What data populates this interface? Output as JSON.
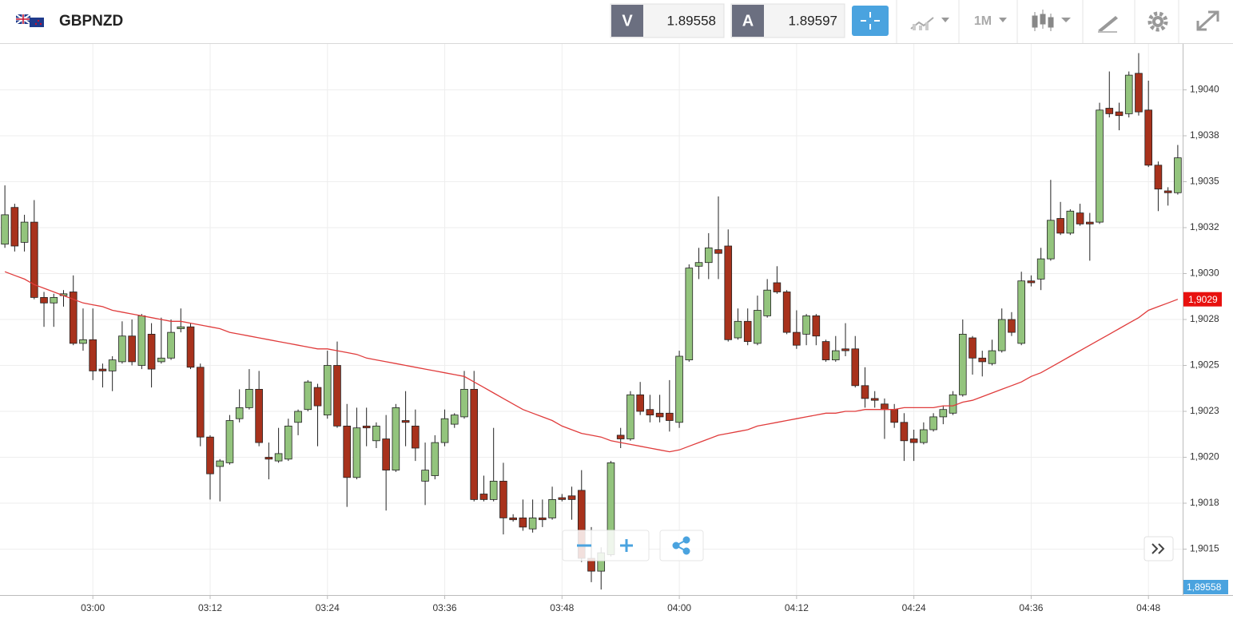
{
  "header": {
    "symbol": "GBPNZD",
    "bid_label": "V",
    "bid": "1.89558",
    "ask_label": "A",
    "ask": "1.89597",
    "timeframe": "1M"
  },
  "chart_data": {
    "type": "candlestick",
    "categories": [
      null,
      null,
      null,
      null,
      null,
      null,
      null,
      null,
      null,
      "03:00",
      null,
      null,
      null,
      null,
      null,
      null,
      null,
      null,
      null,
      null,
      null,
      "03:12",
      null,
      null,
      null,
      null,
      null,
      null,
      null,
      null,
      null,
      null,
      null,
      "03:24",
      null,
      null,
      null,
      null,
      null,
      null,
      null,
      null,
      null,
      null,
      null,
      "03:36",
      null,
      null,
      null,
      null,
      null,
      null,
      null,
      null,
      null,
      null,
      null,
      "03:48",
      null,
      null,
      null,
      null,
      null,
      null,
      null,
      null,
      null,
      null,
      null,
      "04:00",
      null,
      null,
      null,
      null,
      null,
      null,
      null,
      null,
      null,
      null,
      null,
      "04:12",
      null,
      null,
      null,
      null,
      null,
      null,
      null,
      null,
      null,
      null,
      null,
      "04:24",
      null,
      null,
      null,
      null,
      null,
      null,
      null,
      null,
      null,
      null,
      null,
      "04:36",
      null,
      null,
      null,
      null,
      null,
      null,
      null,
      null,
      null,
      null,
      null,
      "04:48",
      null,
      null,
      null
    ],
    "open": [
      1.90316,
      1.90336,
      1.90317,
      1.90328,
      1.90287,
      1.90284,
      1.90288,
      1.9029,
      1.90262,
      1.90264,
      1.90248,
      1.90247,
      1.90252,
      1.90266,
      1.9025,
      1.90267,
      1.90252,
      1.90254,
      1.9027,
      1.90271,
      1.90249,
      1.90211,
      1.90195,
      1.90197,
      1.90221,
      1.90227,
      1.90237,
      1.902,
      1.90198,
      1.90199,
      1.90219,
      1.90226,
      1.90238,
      1.90223,
      1.9025,
      1.90217,
      1.90189,
      1.90217,
      1.90209,
      1.9021,
      1.90193,
      1.9022,
      1.90217,
      1.90187,
      1.9019,
      1.90208,
      1.90218,
      1.90222,
      1.90237,
      1.9018,
      1.90177,
      1.90187,
      1.90167,
      1.90167,
      1.90161,
      1.90167,
      1.90167,
      1.90178,
      1.90179,
      1.90182,
      1.90145,
      1.90138,
      1.90147,
      1.90212,
      1.9021,
      1.90234,
      1.90226,
      1.90224,
      1.90224,
      1.90219,
      1.90253,
      1.90304,
      1.90306,
      1.90313,
      1.90315,
      1.90265,
      1.90274,
      1.90262,
      1.90277,
      1.90295,
      1.9029,
      1.90268,
      1.90267,
      1.90277,
      1.90263,
      1.90253,
      1.90259,
      1.90259,
      1.90239,
      1.90232,
      1.90229,
      1.90226,
      1.90219,
      1.9021,
      1.90208,
      1.90215,
      1.90222,
      1.90224,
      1.90234,
      1.90265,
      1.90254,
      1.90251,
      1.90258,
      1.90275,
      1.90262,
      1.90296,
      1.90297,
      1.90308,
      1.9033,
      1.90322,
      1.90333,
      1.90328,
      1.90328,
      1.9039,
      1.90388,
      1.90387,
      1.90409,
      1.90389,
      1.90359,
      1.90345,
      1.90344
    ],
    "high": [
      1.90348,
      1.90338,
      1.90332,
      1.9034,
      1.9029,
      1.90289,
      1.90291,
      1.90299,
      1.90281,
      1.90281,
      1.90251,
      1.90255,
      1.90274,
      1.90275,
      1.90278,
      1.90273,
      1.90276,
      1.90275,
      1.90281,
      1.90273,
      1.90251,
      1.90212,
      1.90199,
      1.90223,
      1.90237,
      1.90248,
      1.90247,
      1.90208,
      1.90216,
      1.90221,
      1.90226,
      1.90242,
      1.9024,
      1.90258,
      1.90263,
      1.90229,
      1.90227,
      1.90227,
      1.90219,
      1.90223,
      1.90229,
      1.90236,
      1.90226,
      1.90208,
      1.90212,
      1.90226,
      1.90224,
      1.90247,
      1.90247,
      1.9019,
      1.90216,
      1.90197,
      1.90169,
      1.90177,
      1.90177,
      1.90177,
      1.90184,
      1.9018,
      1.90184,
      1.90193,
      1.90162,
      1.90151,
      1.90198,
      1.90216,
      1.90236,
      1.90241,
      1.90234,
      1.90234,
      1.90242,
      1.90258,
      1.90305,
      1.90314,
      1.90322,
      1.90342,
      1.90324,
      1.90281,
      1.90281,
      1.90288,
      1.90297,
      1.90304,
      1.90291,
      1.9028,
      1.90278,
      1.90278,
      1.90264,
      1.90266,
      1.90273,
      1.90266,
      1.90249,
      1.90236,
      1.90232,
      1.90229,
      1.90224,
      1.90215,
      1.90219,
      1.90224,
      1.90228,
      1.90236,
      1.90275,
      1.90266,
      1.90258,
      1.90264,
      1.90281,
      1.90279,
      1.90301,
      1.90299,
      1.90314,
      1.90351,
      1.90339,
      1.90335,
      1.90338,
      1.90333,
      1.90393,
      1.9041,
      1.90393,
      1.9041,
      1.9042,
      1.90405,
      1.90361,
      1.90347,
      1.9037
    ],
    "low": [
      1.90314,
      1.90312,
      1.90312,
      1.90286,
      1.90271,
      1.90271,
      1.90282,
      1.90261,
      1.90258,
      1.90242,
      1.90238,
      1.90236,
      1.90251,
      1.9025,
      1.90248,
      1.90238,
      1.90251,
      1.90253,
      1.90268,
      1.90248,
      1.90206,
      1.90177,
      1.90176,
      1.90196,
      1.90219,
      1.90226,
      1.90206,
      1.90188,
      1.90197,
      1.90198,
      1.90212,
      1.90225,
      1.90206,
      1.90221,
      1.90216,
      1.90173,
      1.90188,
      1.90206,
      1.90205,
      1.90171,
      1.90192,
      1.90206,
      1.90198,
      1.90174,
      1.90188,
      1.90206,
      1.90216,
      1.90221,
      1.90176,
      1.90176,
      1.90176,
      1.90158,
      1.90165,
      1.9016,
      1.90159,
      1.90162,
      1.90166,
      1.90176,
      1.90166,
      1.90143,
      1.90132,
      1.90128,
      1.90146,
      1.90205,
      1.90209,
      1.90223,
      1.90219,
      1.90219,
      1.90214,
      1.90216,
      1.90252,
      1.90297,
      1.90297,
      1.90297,
      1.90263,
      1.90264,
      1.90261,
      1.90261,
      1.90276,
      1.90289,
      1.90267,
      1.90259,
      1.90261,
      1.90261,
      1.90252,
      1.90252,
      1.90255,
      1.90238,
      1.90227,
      1.90227,
      1.9021,
      1.90216,
      1.90198,
      1.90198,
      1.90207,
      1.90214,
      1.90218,
      1.90223,
      1.90233,
      1.90245,
      1.90244,
      1.9025,
      1.90257,
      1.90266,
      1.90261,
      1.90293,
      1.90291,
      1.90307,
      1.90321,
      1.90321,
      1.90326,
      1.90307,
      1.90327,
      1.90385,
      1.90378,
      1.90385,
      1.90386,
      1.90358,
      1.90334,
      1.90337,
      1.90343
    ],
    "close": [
      1.90332,
      1.90315,
      1.90328,
      1.90287,
      1.90284,
      1.90287,
      1.90289,
      1.90262,
      1.90264,
      1.90247,
      1.90247,
      1.90253,
      1.90266,
      1.90252,
      1.90277,
      1.90248,
      1.90254,
      1.90268,
      1.90271,
      1.90249,
      1.90211,
      1.90191,
      1.90198,
      1.9022,
      1.90227,
      1.90237,
      1.90208,
      1.90199,
      1.90202,
      1.90217,
      1.90225,
      1.90241,
      1.90228,
      1.9025,
      1.90217,
      1.90189,
      1.90216,
      1.90216,
      1.90217,
      1.90193,
      1.90227,
      1.90219,
      1.90205,
      1.90193,
      1.90208,
      1.90221,
      1.90223,
      1.90237,
      1.90177,
      1.90177,
      1.90187,
      1.90167,
      1.90166,
      1.90162,
      1.90167,
      1.90166,
      1.90177,
      1.90177,
      1.90177,
      1.90145,
      1.90138,
      1.90148,
      1.90197,
      1.9021,
      1.90234,
      1.90225,
      1.90223,
      1.90222,
      1.9022,
      1.90255,
      1.90303,
      1.90306,
      1.90314,
      1.90311,
      1.90264,
      1.90274,
      1.90263,
      1.9028,
      1.90291,
      1.9029,
      1.90268,
      1.90261,
      1.90277,
      1.90266,
      1.90253,
      1.90258,
      1.90258,
      1.90239,
      1.90232,
      1.90231,
      1.90226,
      1.90219,
      1.90209,
      1.90208,
      1.90215,
      1.90222,
      1.90226,
      1.90234,
      1.90267,
      1.90254,
      1.90252,
      1.90258,
      1.90275,
      1.90268,
      1.90296,
      1.90295,
      1.90308,
      1.90329,
      1.90322,
      1.90334,
      1.90327,
      1.90327,
      1.90389,
      1.90387,
      1.90386,
      1.90408,
      1.90388,
      1.90359,
      1.90346,
      1.90344,
      1.90363
    ],
    "ma": {
      "color": "#e03c3c",
      "values": [
        1.90301,
        1.90299,
        1.90297,
        1.90294,
        1.90292,
        1.9029,
        1.90288,
        1.90286,
        1.90284,
        1.90283,
        1.90282,
        1.9028,
        1.90279,
        1.90278,
        1.90277,
        1.90276,
        1.90275,
        1.90274,
        1.90274,
        1.90273,
        1.90272,
        1.90271,
        1.9027,
        1.90268,
        1.90267,
        1.90266,
        1.90265,
        1.90264,
        1.90263,
        1.90262,
        1.90261,
        1.9026,
        1.90259,
        1.90259,
        1.90258,
        1.90257,
        1.90256,
        1.90254,
        1.90253,
        1.90252,
        1.90251,
        1.9025,
        1.90249,
        1.90248,
        1.90247,
        1.90246,
        1.90245,
        1.90244,
        1.90241,
        1.90238,
        1.90235,
        1.90232,
        1.90229,
        1.90226,
        1.90224,
        1.90222,
        1.9022,
        1.90217,
        1.90215,
        1.90213,
        1.90212,
        1.90211,
        1.90209,
        1.90208,
        1.90207,
        1.90206,
        1.90205,
        1.90204,
        1.90203,
        1.90204,
        1.90206,
        1.90208,
        1.9021,
        1.90212,
        1.90213,
        1.90214,
        1.90215,
        1.90217,
        1.90218,
        1.90219,
        1.9022,
        1.90221,
        1.90222,
        1.90223,
        1.90224,
        1.90224,
        1.90225,
        1.90225,
        1.90226,
        1.90226,
        1.90226,
        1.90226,
        1.90227,
        1.90227,
        1.90227,
        1.90227,
        1.90228,
        1.90228,
        1.9023,
        1.90231,
        1.90233,
        1.90235,
        1.90237,
        1.90239,
        1.90241,
        1.90244,
        1.90246,
        1.90249,
        1.90252,
        1.90255,
        1.90258,
        1.90261,
        1.90264,
        1.90267,
        1.9027,
        1.90273,
        1.90276,
        1.9028,
        1.90282,
        1.90284,
        1.90286
      ]
    },
    "up_color": "#93c47d",
    "down_color": "#a8321c",
    "price_tag": {
      "value": 1.90286,
      "label": "1,9029",
      "color": "#e8110f"
    },
    "last_price_label": "1,89558",
    "ylim": [
      1.90125,
      1.90425
    ],
    "yticks": [
      {
        "value": 1.9015,
        "label": "1,9015"
      },
      {
        "value": 1.90175,
        "label": "1,9018"
      },
      {
        "value": 1.902,
        "label": "1,9020"
      },
      {
        "value": 1.90225,
        "label": "1,9023"
      },
      {
        "value": 1.9025,
        "label": "1,9025"
      },
      {
        "value": 1.90275,
        "label": "1,9028"
      },
      {
        "value": 1.903,
        "label": "1,9030"
      },
      {
        "value": 1.90325,
        "label": "1,9032"
      },
      {
        "value": 1.9035,
        "label": "1,9035"
      },
      {
        "value": 1.90375,
        "label": "1,9038"
      },
      {
        "value": 1.904,
        "label": "1,9040"
      }
    ],
    "grid": true
  }
}
